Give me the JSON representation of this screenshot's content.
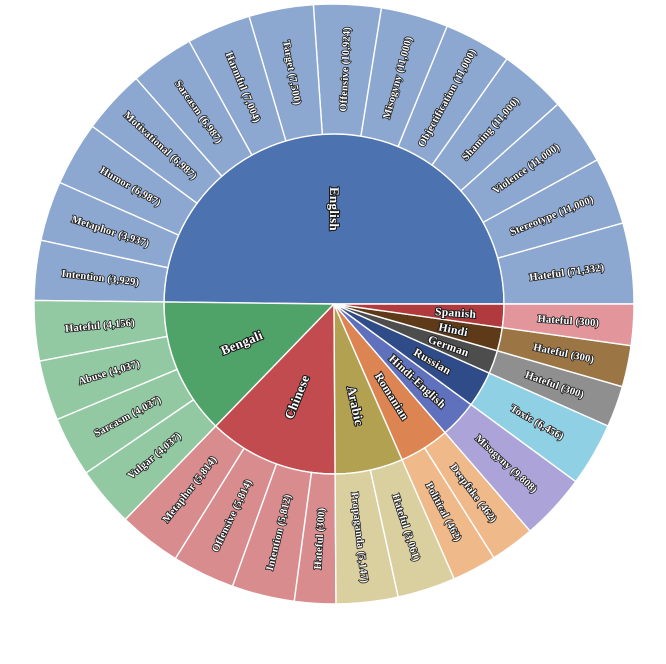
{
  "background_color": "#ffffff",
  "chart_data": {
    "type": "sunburst",
    "rings": [
      "language",
      "category"
    ],
    "start_angle_deg": 0,
    "direction": "counterclockwise",
    "angle_weighting": "log10",
    "languages": [
      {
        "name": "English",
        "colors": {
          "wedge": "#4C72B0",
          "segment": "#8CA7D0"
        },
        "children": [
          {
            "label": "Hateful",
            "value": 71332
          },
          {
            "label": "Stereotype",
            "value": 11000
          },
          {
            "label": "Violence",
            "value": 11000
          },
          {
            "label": "Shaming",
            "value": 11000
          },
          {
            "label": "Objectification",
            "value": 11000
          },
          {
            "label": "Misogyny",
            "value": 11000
          },
          {
            "label": "Offensive",
            "value": 10924
          },
          {
            "label": "Target",
            "value": 7500
          },
          {
            "label": "Harmful",
            "value": 7004
          },
          {
            "label": "Sarcasm",
            "value": 6987
          },
          {
            "label": "Motivational",
            "value": 6987
          },
          {
            "label": "Humor",
            "value": 6987
          },
          {
            "label": "Metaphor",
            "value": 3937
          },
          {
            "label": "Intention",
            "value": 3929
          }
        ]
      },
      {
        "name": "Bengali",
        "colors": {
          "wedge": "#4FA368",
          "segment": "#92C9A3"
        },
        "children": [
          {
            "label": "Hateful",
            "value": 4156
          },
          {
            "label": "Abuse",
            "value": 4037
          },
          {
            "label": "Sarcasm",
            "value": 4037
          },
          {
            "label": "Vulgar",
            "value": 4037
          }
        ]
      },
      {
        "name": "Chinese",
        "colors": {
          "wedge": "#C14B4F",
          "segment": "#D88C8E"
        },
        "children": [
          {
            "label": "Metaphor",
            "value": 5814
          },
          {
            "label": "Offensive",
            "value": 5814
          },
          {
            "label": "Intention",
            "value": 5812
          },
          {
            "label": "Hateful",
            "value": 300
          }
        ]
      },
      {
        "name": "Arabic",
        "colors": {
          "wedge": "#B2A150",
          "segment": "#D9CF9F"
        },
        "children": [
          {
            "label": "Propaganda",
            "value": 5147
          },
          {
            "label": "Hateful",
            "value": 3061
          }
        ]
      },
      {
        "name": "Romanian",
        "colors": {
          "wedge": "#DC8452",
          "segment": "#EFB98A"
        },
        "children": [
          {
            "label": "Political",
            "value": 462
          },
          {
            "label": "Deepfake",
            "value": 462
          }
        ]
      },
      {
        "name": "Hindi-English",
        "colors": {
          "wedge": "#5F71BC",
          "segment": "#ACA4D9"
        },
        "children": [
          {
            "label": "Misogyny",
            "value": 9808
          }
        ]
      },
      {
        "name": "Russian",
        "colors": {
          "wedge": "#2F4C88",
          "segment": "#8FD0E4"
        },
        "children": [
          {
            "label": "Toxic",
            "value": 6456
          }
        ]
      },
      {
        "name": "German",
        "colors": {
          "wedge": "#4D4D4D",
          "segment": "#8F8F8F"
        },
        "children": [
          {
            "label": "Hateful",
            "value": 300
          }
        ]
      },
      {
        "name": "Hindi",
        "colors": {
          "wedge": "#5E3A18",
          "segment": "#9B7544"
        },
        "children": [
          {
            "label": "Hateful",
            "value": 300
          }
        ]
      },
      {
        "name": "Spanish",
        "colors": {
          "wedge": "#B03A3E",
          "segment": "#E2959A"
        },
        "children": [
          {
            "label": "Hateful",
            "value": 300
          }
        ]
      }
    ]
  }
}
